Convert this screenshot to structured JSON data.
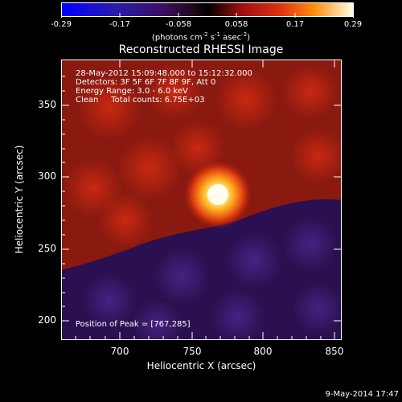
{
  "colorbar": {
    "ticks": [
      "-0.29",
      "-0.17",
      "-0.058",
      "0.058",
      "0.17",
      "0.29"
    ],
    "units_pre": "(photons cm",
    "units_e1": "-2",
    "units_mid": " s",
    "units_e2": "-1",
    "units_mid2": " asec",
    "units_e3": "-2",
    "units_post": ")"
  },
  "image": {
    "title": "Reconstructed RHESSI Image",
    "time": "28-May-2012 15:09:48.000 to 15:12:32.000",
    "detectors": "Detectors: 3F 5F 6F 7F 8F 9F, Att 0",
    "energy": "Energy Range: 3.0 - 6.0 keV",
    "method": "Clean     Total counts: 6.75E+03",
    "peak": "Position of Peak = [767,285]"
  },
  "axes": {
    "xlabel": "Heliocentric X (arcsec)",
    "ylabel": "Heliocentric Y (arcsec)",
    "xticks": [
      "700",
      "750",
      "800",
      "850"
    ],
    "yticks": [
      "350",
      "300",
      "250",
      "200"
    ]
  },
  "footer": {
    "timestamp": "9-May-2014 17:47"
  },
  "colors": {
    "bg": "#000000",
    "source": "#ffffff",
    "background_red": "#b01a0e",
    "background_purple": "#3a1a6a"
  }
}
